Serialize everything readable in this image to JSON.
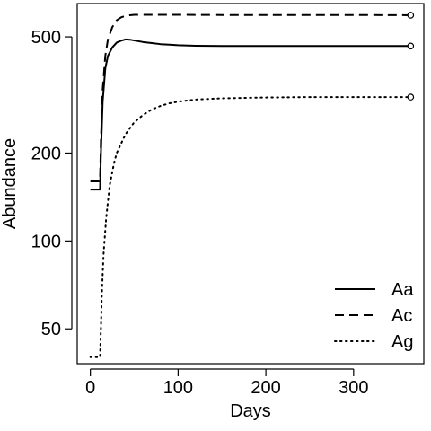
{
  "chart_data": {
    "type": "line",
    "xlabel": "Days",
    "ylabel": "Abundance",
    "xlim": [
      -15,
      380
    ],
    "ylim": [
      38,
      650
    ],
    "y_scale": "log",
    "x_ticks": [
      {
        "value": 0,
        "label": "0"
      },
      {
        "value": 100,
        "label": "100"
      },
      {
        "value": 200,
        "label": "200"
      },
      {
        "value": 300,
        "label": "300"
      }
    ],
    "y_ticks": [
      {
        "value": 50,
        "label": "50"
      },
      {
        "value": 100,
        "label": "100"
      },
      {
        "value": 200,
        "label": "200"
      },
      {
        "value": 500,
        "label": "500"
      }
    ],
    "legend_position": "bottom-right",
    "grid": false,
    "series": [
      {
        "name": "Aa",
        "style": "solid",
        "end_marker": "open-circle",
        "points": [
          [
            0,
            150
          ],
          [
            10,
            150
          ],
          [
            11,
            150
          ],
          [
            12,
            200
          ],
          [
            14,
            300
          ],
          [
            17,
            390
          ],
          [
            20,
            430
          ],
          [
            25,
            460
          ],
          [
            30,
            478
          ],
          [
            35,
            485
          ],
          [
            40,
            490
          ],
          [
            45,
            489
          ],
          [
            50,
            486
          ],
          [
            60,
            480
          ],
          [
            70,
            476
          ],
          [
            80,
            472
          ],
          [
            90,
            470
          ],
          [
            100,
            468
          ],
          [
            120,
            466
          ],
          [
            150,
            465
          ],
          [
            200,
            465
          ],
          [
            250,
            465
          ],
          [
            300,
            465
          ],
          [
            365,
            465
          ]
        ]
      },
      {
        "name": "Ac",
        "style": "dashed",
        "end_marker": "open-circle",
        "points": [
          [
            0,
            160
          ],
          [
            10,
            160
          ],
          [
            11,
            160
          ],
          [
            12,
            220
          ],
          [
            14,
            330
          ],
          [
            17,
            430
          ],
          [
            20,
            490
          ],
          [
            25,
            540
          ],
          [
            30,
            570
          ],
          [
            35,
            583
          ],
          [
            40,
            590
          ],
          [
            45,
            593
          ],
          [
            50,
            595
          ],
          [
            60,
            595
          ],
          [
            80,
            595
          ],
          [
            100,
            595
          ],
          [
            150,
            594
          ],
          [
            200,
            594
          ],
          [
            300,
            594
          ],
          [
            365,
            593
          ]
        ]
      },
      {
        "name": "Ag",
        "style": "dotted",
        "end_marker": "open-circle",
        "points": [
          [
            0,
            40
          ],
          [
            10,
            40
          ],
          [
            11,
            40
          ],
          [
            12,
            50
          ],
          [
            13,
            65
          ],
          [
            15,
            90
          ],
          [
            18,
            120
          ],
          [
            22,
            155
          ],
          [
            27,
            185
          ],
          [
            30,
            200
          ],
          [
            40,
            232
          ],
          [
            50,
            255
          ],
          [
            60,
            270
          ],
          [
            70,
            282
          ],
          [
            80,
            290
          ],
          [
            90,
            296
          ],
          [
            100,
            300
          ],
          [
            120,
            305
          ],
          [
            150,
            308
          ],
          [
            200,
            310
          ],
          [
            250,
            311
          ],
          [
            300,
            311
          ],
          [
            365,
            311
          ]
        ]
      }
    ]
  }
}
